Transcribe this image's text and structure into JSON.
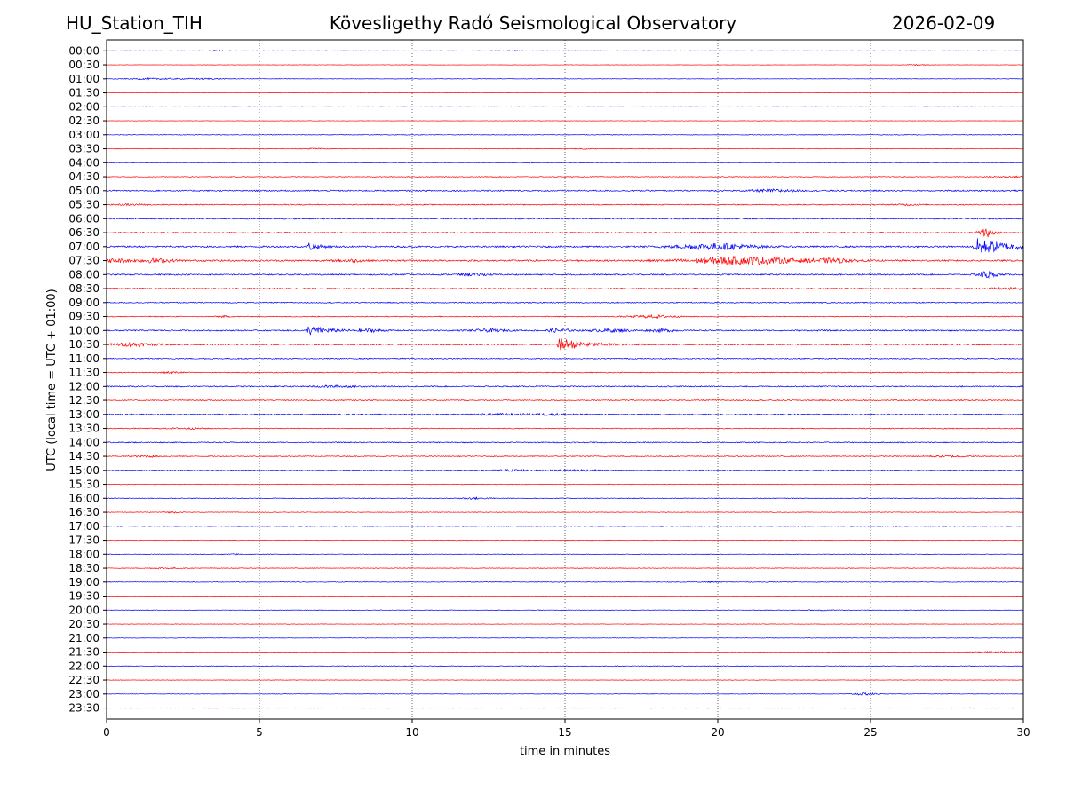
{
  "header": {
    "station": "HU_Station_TIH",
    "observatory": "Kövesligethy Radó Seismological Observatory",
    "date": "2026-02-09"
  },
  "chart_data": {
    "type": "line",
    "title": "Kövesligethy Radó Seismological Observatory",
    "xlabel": "time in minutes",
    "ylabel": "UTC (local time = UTC + 01:00)",
    "xlim": [
      0,
      30
    ],
    "xticks": [
      0,
      5,
      10,
      15,
      20,
      25,
      30
    ],
    "vgrid_minutes": [
      5,
      10,
      15,
      20,
      25
    ],
    "grid": "vertical dotted",
    "series_colors": {
      "full_hour": "#0000ff",
      "half_hour": "#ff0000"
    },
    "rows": [
      {
        "label": "00:00",
        "noise": 0.15,
        "events": [
          {
            "t": 3.6,
            "amp": 0.3,
            "dur": 0.4,
            "kind": "burst"
          },
          {
            "t": 13.2,
            "amp": 0.25,
            "dur": 0.6,
            "kind": "burst"
          }
        ]
      },
      {
        "label": "00:30",
        "noise": 0.12,
        "events": [
          {
            "t": 26.5,
            "amp": 0.3,
            "dur": 0.4,
            "kind": "burst"
          }
        ]
      },
      {
        "label": "01:00",
        "noise": 0.15,
        "events": [
          {
            "t": 1.5,
            "amp": 0.45,
            "dur": 1.2,
            "kind": "burst"
          },
          {
            "t": 3.2,
            "amp": 0.35,
            "dur": 1.0,
            "kind": "burst"
          }
        ]
      },
      {
        "label": "01:30",
        "noise": 0.12,
        "events": []
      },
      {
        "label": "02:00",
        "noise": 0.12,
        "events": []
      },
      {
        "label": "02:30",
        "noise": 0.12,
        "events": []
      },
      {
        "label": "03:00",
        "noise": 0.2,
        "events": []
      },
      {
        "label": "03:30",
        "noise": 0.2,
        "events": [
          {
            "t": 6.8,
            "amp": 0.35,
            "dur": 0.5,
            "kind": "burst"
          },
          {
            "t": 15.6,
            "amp": 0.3,
            "dur": 0.4,
            "kind": "burst"
          }
        ]
      },
      {
        "label": "04:00",
        "noise": 0.18,
        "events": [
          {
            "t": 13.9,
            "amp": 0.4,
            "dur": 0.1,
            "kind": "spike"
          }
        ]
      },
      {
        "label": "04:30",
        "noise": 0.25,
        "events": [
          {
            "t": 29.5,
            "amp": 0.3,
            "dur": 1.0,
            "kind": "burst"
          }
        ]
      },
      {
        "label": "05:00",
        "noise": 0.45,
        "events": [
          {
            "t": 21.8,
            "amp": 0.8,
            "dur": 1.0,
            "kind": "burst"
          }
        ]
      },
      {
        "label": "05:30",
        "noise": 0.35,
        "events": [
          {
            "t": 0.8,
            "amp": 0.4,
            "dur": 0.6,
            "kind": "burst"
          },
          {
            "t": 26.2,
            "amp": 0.4,
            "dur": 0.6,
            "kind": "burst"
          }
        ]
      },
      {
        "label": "06:00",
        "noise": 0.4,
        "events": []
      },
      {
        "label": "06:30",
        "noise": 0.35,
        "events": [
          {
            "t": 28.8,
            "amp": 3.0,
            "dur": 0.4,
            "kind": "burst"
          }
        ]
      },
      {
        "label": "07:00",
        "noise": 0.55,
        "events": [
          {
            "t": 6.6,
            "amp": 3.0,
            "dur": 0.8,
            "kind": "quake"
          },
          {
            "t": 19.9,
            "amp": 2.0,
            "dur": 1.8,
            "kind": "burst"
          },
          {
            "t": 28.4,
            "amp": 6.0,
            "dur": 3.0,
            "kind": "quake"
          }
        ]
      },
      {
        "label": "07:30",
        "noise": 0.55,
        "events": [
          {
            "t": 0.3,
            "amp": 1.2,
            "dur": 0.6,
            "kind": "burst"
          },
          {
            "t": 1.6,
            "amp": 1.2,
            "dur": 0.8,
            "kind": "burst"
          },
          {
            "t": 8.0,
            "amp": 0.8,
            "dur": 0.6,
            "kind": "burst"
          },
          {
            "t": 20.8,
            "amp": 2.5,
            "dur": 2.5,
            "kind": "burst"
          },
          {
            "t": 23.8,
            "amp": 1.2,
            "dur": 1.0,
            "kind": "burst"
          }
        ]
      },
      {
        "label": "08:00",
        "noise": 0.45,
        "events": [
          {
            "t": 12.0,
            "amp": 0.6,
            "dur": 0.8,
            "kind": "burst"
          },
          {
            "t": 28.8,
            "amp": 2.5,
            "dur": 0.2,
            "kind": "spike"
          }
        ]
      },
      {
        "label": "08:30",
        "noise": 0.4,
        "events": [
          {
            "t": 29.5,
            "amp": 0.6,
            "dur": 1.0,
            "kind": "burst"
          }
        ]
      },
      {
        "label": "09:00",
        "noise": 0.35,
        "events": []
      },
      {
        "label": "09:30",
        "noise": 0.3,
        "events": [
          {
            "t": 3.8,
            "amp": 0.5,
            "dur": 0.3,
            "kind": "burst"
          },
          {
            "t": 17.9,
            "amp": 0.9,
            "dur": 1.0,
            "kind": "burst"
          }
        ]
      },
      {
        "label": "10:00",
        "noise": 0.45,
        "events": [
          {
            "t": 6.6,
            "amp": 3.6,
            "dur": 1.5,
            "kind": "quake"
          },
          {
            "t": 8.6,
            "amp": 0.9,
            "dur": 0.6,
            "kind": "burst"
          },
          {
            "t": 12.5,
            "amp": 0.8,
            "dur": 0.8,
            "kind": "burst"
          },
          {
            "t": 14.8,
            "amp": 1.2,
            "dur": 0.5,
            "kind": "burst"
          },
          {
            "t": 16.5,
            "amp": 0.9,
            "dur": 1.0,
            "kind": "burst"
          },
          {
            "t": 18.2,
            "amp": 0.8,
            "dur": 0.6,
            "kind": "burst"
          }
        ]
      },
      {
        "label": "10:30",
        "noise": 0.45,
        "events": [
          {
            "t": 0.9,
            "amp": 1.1,
            "dur": 1.0,
            "kind": "burst"
          },
          {
            "t": 14.8,
            "amp": 5.0,
            "dur": 2.0,
            "kind": "quake"
          }
        ]
      },
      {
        "label": "11:00",
        "noise": 0.35,
        "events": []
      },
      {
        "label": "11:30",
        "noise": 0.3,
        "events": [
          {
            "t": 2.2,
            "amp": 0.5,
            "dur": 0.6,
            "kind": "burst"
          }
        ]
      },
      {
        "label": "12:00",
        "noise": 0.4,
        "events": [
          {
            "t": 7.5,
            "amp": 0.6,
            "dur": 1.0,
            "kind": "burst"
          }
        ]
      },
      {
        "label": "12:30",
        "noise": 0.35,
        "events": []
      },
      {
        "label": "13:00",
        "noise": 0.4,
        "events": [
          {
            "t": 12.8,
            "amp": 0.5,
            "dur": 1.0,
            "kind": "burst"
          },
          {
            "t": 14.5,
            "amp": 0.5,
            "dur": 1.2,
            "kind": "burst"
          }
        ]
      },
      {
        "label": "13:30",
        "noise": 0.3,
        "events": [
          {
            "t": 2.6,
            "amp": 0.4,
            "dur": 0.8,
            "kind": "burst"
          }
        ]
      },
      {
        "label": "14:00",
        "noise": 0.35,
        "events": []
      },
      {
        "label": "14:30",
        "noise": 0.3,
        "events": [
          {
            "t": 1.3,
            "amp": 0.6,
            "dur": 0.6,
            "kind": "burst"
          },
          {
            "t": 27.5,
            "amp": 0.5,
            "dur": 1.0,
            "kind": "burst"
          }
        ]
      },
      {
        "label": "15:00",
        "noise": 0.3,
        "events": [
          {
            "t": 13.3,
            "amp": 0.6,
            "dur": 0.8,
            "kind": "burst"
          },
          {
            "t": 15.3,
            "amp": 0.6,
            "dur": 1.0,
            "kind": "burst"
          }
        ]
      },
      {
        "label": "15:30",
        "noise": 0.2,
        "events": []
      },
      {
        "label": "16:00",
        "noise": 0.25,
        "events": [
          {
            "t": 12.0,
            "amp": 0.5,
            "dur": 0.8,
            "kind": "burst"
          }
        ]
      },
      {
        "label": "16:30",
        "noise": 0.2,
        "events": [
          {
            "t": 2.1,
            "amp": 0.4,
            "dur": 0.5,
            "kind": "burst"
          }
        ]
      },
      {
        "label": "17:00",
        "noise": 0.22,
        "events": []
      },
      {
        "label": "17:30",
        "noise": 0.2,
        "events": []
      },
      {
        "label": "18:00",
        "noise": 0.2,
        "events": [
          {
            "t": 4.2,
            "amp": 0.3,
            "dur": 0.3,
            "kind": "burst"
          }
        ]
      },
      {
        "label": "18:30",
        "noise": 0.2,
        "events": [
          {
            "t": 1.9,
            "amp": 0.4,
            "dur": 0.6,
            "kind": "burst"
          }
        ]
      },
      {
        "label": "19:00",
        "noise": 0.2,
        "events": [
          {
            "t": 19.8,
            "amp": 0.3,
            "dur": 0.5,
            "kind": "burst"
          }
        ]
      },
      {
        "label": "19:30",
        "noise": 0.15,
        "events": []
      },
      {
        "label": "20:00",
        "noise": 0.18,
        "events": [
          {
            "t": 23.4,
            "amp": 0.3,
            "dur": 0.6,
            "kind": "burst"
          }
        ]
      },
      {
        "label": "20:30",
        "noise": 0.15,
        "events": []
      },
      {
        "label": "21:00",
        "noise": 0.15,
        "events": []
      },
      {
        "label": "21:30",
        "noise": 0.2,
        "events": [
          {
            "t": 29.2,
            "amp": 0.4,
            "dur": 1.5,
            "kind": "burst"
          }
        ]
      },
      {
        "label": "22:00",
        "noise": 0.22,
        "events": []
      },
      {
        "label": "22:30",
        "noise": 0.15,
        "events": []
      },
      {
        "label": "23:00",
        "noise": 0.15,
        "events": [
          {
            "t": 24.8,
            "amp": 0.8,
            "dur": 0.6,
            "kind": "burst"
          }
        ]
      },
      {
        "label": "23:30",
        "noise": 0.18,
        "events": []
      }
    ]
  }
}
